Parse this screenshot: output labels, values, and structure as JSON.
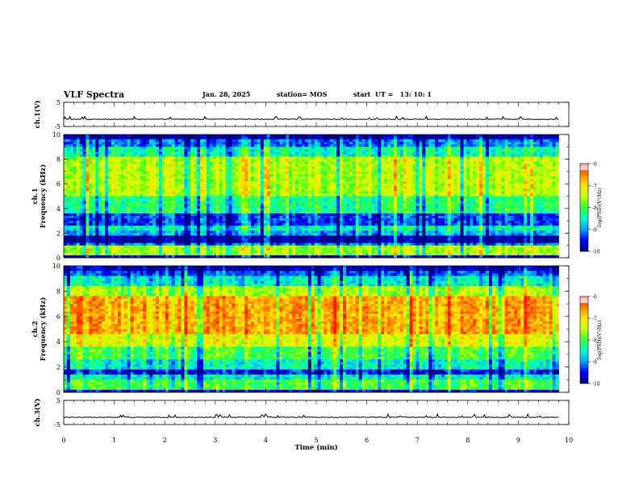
{
  "header": {
    "title": "VLF Spectra",
    "date": "Jan. 28, 2025",
    "station": "station= MOS",
    "start": "start  UT =   13: 10: 1"
  },
  "chart_data": [
    {
      "type": "line",
      "panel": "ch1-waveform",
      "ylabel": "ch.1(V)",
      "ylim": [
        -5,
        5
      ],
      "yticks": [
        "5",
        "-5"
      ],
      "x_range": [
        0,
        10
      ],
      "data_extent_min": [
        0,
        9.8
      ],
      "level": -2,
      "series": []
    },
    {
      "type": "heatmap",
      "panel": "ch1-spectrogram",
      "ylabel": "ch.1\nFrequency (kHz)",
      "ylim": [
        0,
        10
      ],
      "yticks": [
        "0",
        "2",
        "4",
        "6",
        "8",
        "10"
      ],
      "x_range": [
        0,
        10
      ],
      "data_extent_min": [
        0,
        9.8
      ],
      "colorbar": {
        "label": "log(PSD)(V²/Hz)",
        "ticks": [
          "-6",
          "-7",
          "-8",
          "-9",
          "-10"
        ],
        "range": [
          -10,
          -6
        ]
      },
      "bands": [
        {
          "from": 0.0,
          "to": 0.3,
          "level": -9.6
        },
        {
          "from": 0.3,
          "to": 0.9,
          "level": -7.6
        },
        {
          "from": 0.9,
          "to": 1.3,
          "level": -9.1
        },
        {
          "from": 1.3,
          "to": 1.8,
          "level": -9.9
        },
        {
          "from": 1.8,
          "to": 2.3,
          "level": -8.9
        },
        {
          "from": 2.3,
          "to": 2.6,
          "level": -8.5
        },
        {
          "from": 2.6,
          "to": 3.6,
          "level": -9.3
        },
        {
          "from": 3.6,
          "to": 5.0,
          "level": -8.2
        },
        {
          "from": 5.0,
          "to": 8.2,
          "level": -7.5
        },
        {
          "from": 8.2,
          "to": 9.0,
          "level": -8.4
        },
        {
          "from": 9.0,
          "to": 9.6,
          "level": -9.1
        },
        {
          "from": 9.6,
          "to": 10.0,
          "level": -9.9
        }
      ]
    },
    {
      "type": "heatmap",
      "panel": "ch2-spectrogram",
      "ylabel": "ch.2\nFrequency (kHz)",
      "ylim": [
        0,
        10
      ],
      "yticks": [
        "0",
        "2",
        "4",
        "6",
        "8",
        "10"
      ],
      "x_range": [
        0,
        10
      ],
      "data_extent_min": [
        0,
        9.8
      ],
      "colorbar": {
        "label": "log(PSD)(V²/Hz)",
        "ticks": [
          "-6",
          "-7",
          "-8",
          "-9",
          "-10"
        ],
        "range": [
          -10,
          -6
        ]
      },
      "bands": [
        {
          "from": 0.0,
          "to": 0.3,
          "level": -9.6
        },
        {
          "from": 0.3,
          "to": 1.0,
          "level": -8.0
        },
        {
          "from": 1.0,
          "to": 1.4,
          "level": -8.6
        },
        {
          "from": 1.4,
          "to": 1.8,
          "level": -9.5
        },
        {
          "from": 1.8,
          "to": 2.6,
          "level": -8.5
        },
        {
          "from": 2.6,
          "to": 3.6,
          "level": -8.0
        },
        {
          "from": 3.6,
          "to": 4.6,
          "level": -7.3
        },
        {
          "from": 4.6,
          "to": 7.6,
          "level": -6.7
        },
        {
          "from": 7.6,
          "to": 8.4,
          "level": -7.6
        },
        {
          "from": 8.4,
          "to": 9.2,
          "level": -8.6
        },
        {
          "from": 9.2,
          "to": 9.7,
          "level": -9.3
        },
        {
          "from": 9.7,
          "to": 10.0,
          "level": -9.8
        }
      ]
    },
    {
      "type": "line",
      "panel": "ch3-waveform",
      "ylabel": "ch.3(V)",
      "ylim": [
        -5,
        5
      ],
      "yticks": [
        "5",
        "-5"
      ],
      "x_range": [
        0,
        10
      ],
      "data_extent_min": [
        0,
        9.8
      ],
      "level": -2,
      "series": []
    }
  ],
  "x_axis": {
    "label": "Time (min)",
    "ticks": [
      "0",
      "1",
      "2",
      "3",
      "4",
      "5",
      "6",
      "7",
      "8",
      "9",
      "10"
    ]
  },
  "colors": {
    "colormap": [
      "#00007f",
      "#0000ff",
      "#00a0ff",
      "#00ffc8",
      "#32ff32",
      "#c8ff00",
      "#ffe600",
      "#ff8000",
      "#ff1a00",
      "#ffffff"
    ]
  }
}
